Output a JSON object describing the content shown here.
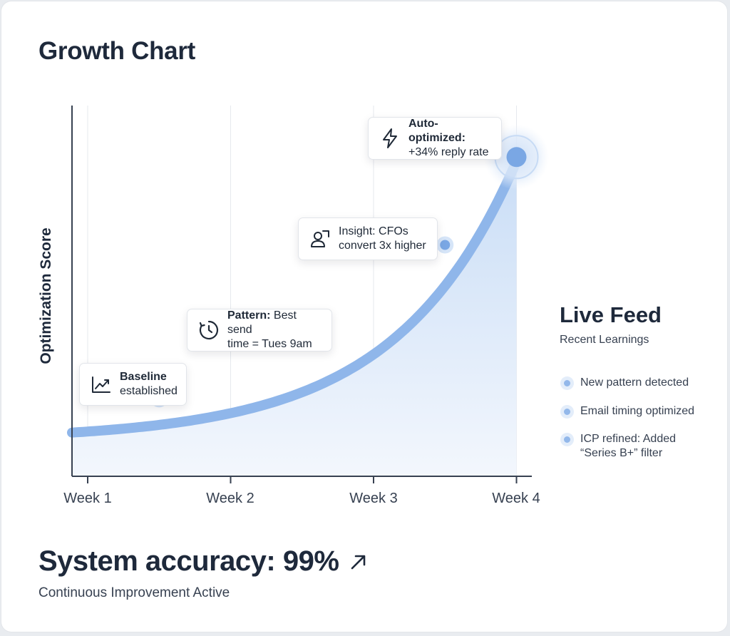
{
  "header": {
    "title": "Growth Chart"
  },
  "chart_data": {
    "type": "area",
    "title": "Growth Chart",
    "xlabel": "",
    "ylabel": "Optimization Score",
    "categories": [
      "Week 1",
      "Week 2",
      "Week 3",
      "Week 4"
    ],
    "x": [
      0.5,
      1.5,
      2.5,
      3.5,
      4.0
    ],
    "values": [
      0.24,
      0.86,
      2.21,
      4.26,
      6.2
    ],
    "grid": true,
    "annotations": [
      {
        "id": "baseline",
        "icon": "trend-chart-icon",
        "bold": "Baseline",
        "text": "established",
        "x": 1.5
      },
      {
        "id": "pattern",
        "icon": "clock-icon",
        "bold": "Pattern:",
        "text": "Best send time = Tues 9am",
        "x": 2.5
      },
      {
        "id": "insight",
        "icon": "user-icon",
        "bold": "",
        "text": "Insight: CFOs convert 3x higher",
        "x": 3.5
      },
      {
        "id": "auto",
        "icon": "lightning-icon",
        "bold": "Auto-optimized:",
        "text": "+34% reply rate",
        "x": 4.0
      }
    ]
  },
  "callouts": {
    "baseline": {
      "bold": "Baseline",
      "line2": "established"
    },
    "pattern": {
      "bold": "Pattern:",
      "line1": " Best send",
      "line2": "time = Tues 9am"
    },
    "insight": {
      "line1": "Insight: CFOs",
      "line2": "convert 3x higher"
    },
    "auto": {
      "bold": "Auto-optimized:",
      "line2": "+34% reply rate"
    }
  },
  "feed": {
    "title": "Live Feed",
    "subtitle": "Recent Learnings",
    "items": [
      {
        "text": "New pattern detected"
      },
      {
        "text": "Email timing optimized"
      },
      {
        "text": "ICP refined: Added “Series B+” filter"
      }
    ]
  },
  "footer": {
    "accuracy": "System accuracy: 99%",
    "status": "Continuous Improvement Active"
  },
  "colors": {
    "line": "#8fb6ea",
    "fill": "#dbe8f8",
    "point": "#7aa7e4",
    "text": "#1e293b"
  }
}
